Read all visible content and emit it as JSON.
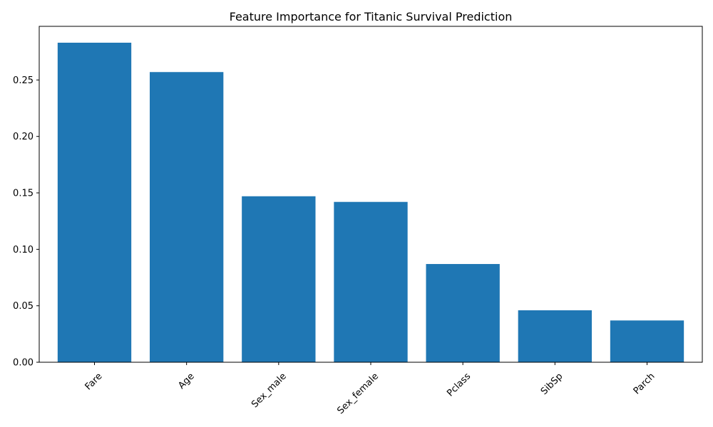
{
  "chart_data": {
    "type": "bar",
    "title": "Feature Importance for Titanic Survival Prediction",
    "xlabel": "",
    "ylabel": "",
    "categories": [
      "Fare",
      "Age",
      "Sex_male",
      "Sex_female",
      "Pclass",
      "SibSp",
      "Parch"
    ],
    "values": [
      0.283,
      0.257,
      0.147,
      0.142,
      0.087,
      0.046,
      0.037
    ],
    "ylim": [
      0,
      0.2975
    ],
    "yticks": [
      0.0,
      0.05,
      0.1,
      0.15,
      0.2,
      0.25
    ],
    "ytick_labels": [
      "0.00",
      "0.05",
      "0.10",
      "0.15",
      "0.20",
      "0.25"
    ],
    "xtick_rotation_deg": 45,
    "grid": false,
    "bar_color": "#1f77b4"
  }
}
